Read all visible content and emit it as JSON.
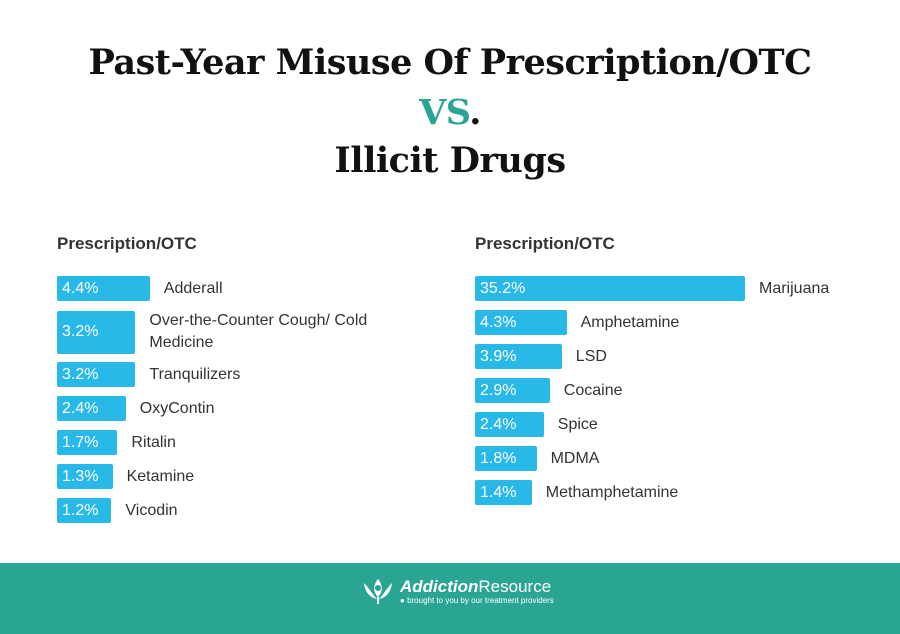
{
  "title": {
    "line1": "Past-Year Misuse Of Prescription/OTC",
    "vs": "VS",
    "dot": ".",
    "line3": "Illicit Drugs"
  },
  "colors": {
    "bar": "#29b9e8",
    "accent": "#2aa594"
  },
  "chart_data": [
    {
      "type": "bar",
      "title": "Prescription/OTC",
      "unit": "%",
      "categories": [
        "Adderall",
        "Over-the-Counter Cough/ Cold Medicine",
        "Tranquilizers",
        "OxyContin",
        "Ritalin",
        "Ketamine",
        "Vicodin"
      ],
      "values": [
        4.4,
        3.2,
        3.2,
        2.4,
        1.7,
        1.3,
        1.2
      ],
      "labels": [
        "4.4%",
        "3.2%",
        "3.2%",
        "2.4%",
        "1.7%",
        "1.3%",
        "1.2%"
      ]
    },
    {
      "type": "bar",
      "title": "Prescription/OTC",
      "unit": "%",
      "categories": [
        "Marijuana",
        "Amphetamine",
        "LSD",
        "Cocaine",
        "Spice",
        "MDMA",
        "Methamphetamine"
      ],
      "values": [
        35.2,
        4.3,
        3.9,
        2.9,
        2.4,
        1.8,
        1.4
      ],
      "labels": [
        "35.2%",
        "4.3%",
        "3.9%",
        "2.9%",
        "2.4%",
        "1.8%",
        "1.4%"
      ]
    }
  ],
  "footer": {
    "brand_bold": "Addiction",
    "brand_rest": "Resource",
    "tagline": "brought to you by our treatment providers"
  }
}
